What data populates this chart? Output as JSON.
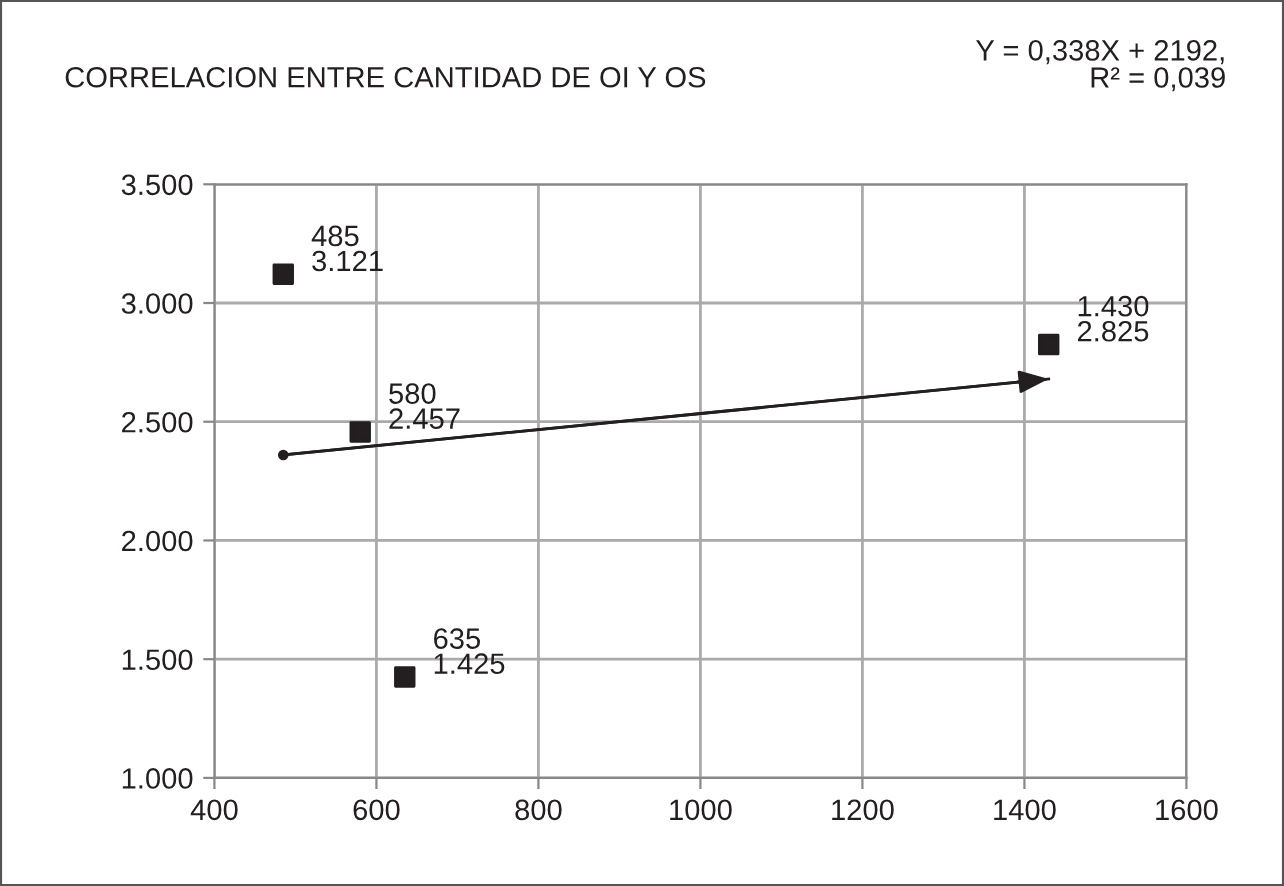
{
  "chart_data": {
    "type": "scatter",
    "title": "CORRELACION ENTRE CANTIDAD DE OI Y OS",
    "annotations": [
      "Y = 0,338X + 2192,\nR² = 0,039"
    ],
    "series": [
      {
        "color": "#231f20",
        "marker": "square",
        "x": [
          485,
          580,
          635,
          1430
        ],
        "values": [
          3121,
          2457,
          1425,
          2825
        ],
        "value_labels": [
          "485\n3.121",
          "580\n2.457",
          "635\n1.425",
          "1.430\n2.825"
        ]
      },
      {
        "type": "line",
        "color": "#231f20",
        "x": [
          485,
          1430
        ],
        "values": [
          2360,
          2680
        ]
      }
    ],
    "xlim": [
      400,
      1600
    ],
    "xticks": [
      400,
      600,
      800,
      1000,
      1200,
      1400,
      1600
    ],
    "ylim": [
      1000,
      3500
    ],
    "yticks": [
      {
        "value": 1000,
        "label": "1.000"
      },
      {
        "value": 1500,
        "label": "1.500"
      },
      {
        "value": 2000,
        "label": "2.000"
      },
      {
        "value": 2500,
        "label": "2.500"
      },
      {
        "value": 3000,
        "label": "3.000"
      },
      {
        "value": 3500,
        "label": "3.500"
      }
    ],
    "grid": true,
    "legend": false
  }
}
